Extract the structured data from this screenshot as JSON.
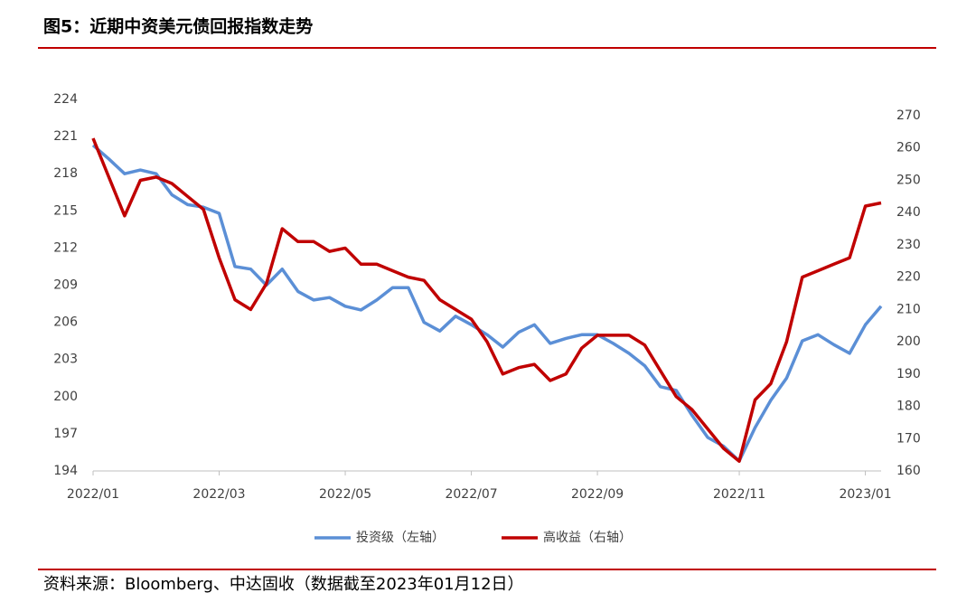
{
  "chart_data": {
    "type": "line",
    "title": "图5：近期中资美元债回报指数走势",
    "source": "资料来源：Bloomberg、中达固收（数据截至2023年01月12日）",
    "categories": [
      "2022/01",
      null,
      null,
      null,
      null,
      null,
      null,
      null,
      "2022/03",
      null,
      null,
      null,
      null,
      null,
      null,
      null,
      "2022/05",
      null,
      null,
      null,
      null,
      null,
      null,
      null,
      "2022/07",
      null,
      null,
      null,
      null,
      null,
      null,
      null,
      "2022/09",
      null,
      null,
      null,
      null,
      null,
      null,
      null,
      null,
      "2022/11",
      null,
      null,
      null,
      null,
      null,
      null,
      null,
      "2023/01",
      null
    ],
    "series": [
      {
        "name": "投资级（左轴）",
        "color": "#5b8fd6",
        "values": [
          220.3,
          219.2,
          218.0,
          218.3,
          218.0,
          216.3,
          215.5,
          215.3,
          214.8,
          210.5,
          210.3,
          209.0,
          210.3,
          208.5,
          207.8,
          208.0,
          207.3,
          207.0,
          207.8,
          208.8,
          208.8,
          206.0,
          205.3,
          206.5,
          205.8,
          205.0,
          204.0,
          205.2,
          205.8,
          204.3,
          204.7,
          205.0,
          205.0,
          204.3,
          203.5,
          202.5,
          200.8,
          200.5,
          198.5,
          196.7,
          196.0,
          194.8,
          197.5,
          199.7,
          201.5,
          204.5,
          205.0,
          204.2,
          203.5,
          205.8,
          207.3
        ]
      },
      {
        "name": "高收益（右轴）",
        "color": "#c00000",
        "axis": "y2",
        "values": [
          263,
          251,
          239,
          250,
          251,
          249,
          245,
          241,
          226,
          213,
          210,
          218,
          235,
          231,
          231,
          228,
          229,
          224,
          224,
          222,
          220,
          219,
          213,
          210,
          207,
          200,
          190,
          192,
          193,
          188,
          190,
          198,
          202,
          202,
          202,
          199,
          191,
          183,
          179,
          173,
          167,
          163,
          182,
          187,
          200,
          220,
          222,
          224,
          226,
          242,
          243
        ]
      }
    ],
    "ylim": [
      194,
      224
    ],
    "yticks": [
      194,
      197,
      200,
      203,
      206,
      209,
      212,
      215,
      218,
      221,
      224
    ],
    "y2lim": [
      160,
      270
    ],
    "y2ticks": [
      160,
      170,
      180,
      190,
      200,
      210,
      220,
      230,
      240,
      250,
      260,
      270
    ]
  }
}
